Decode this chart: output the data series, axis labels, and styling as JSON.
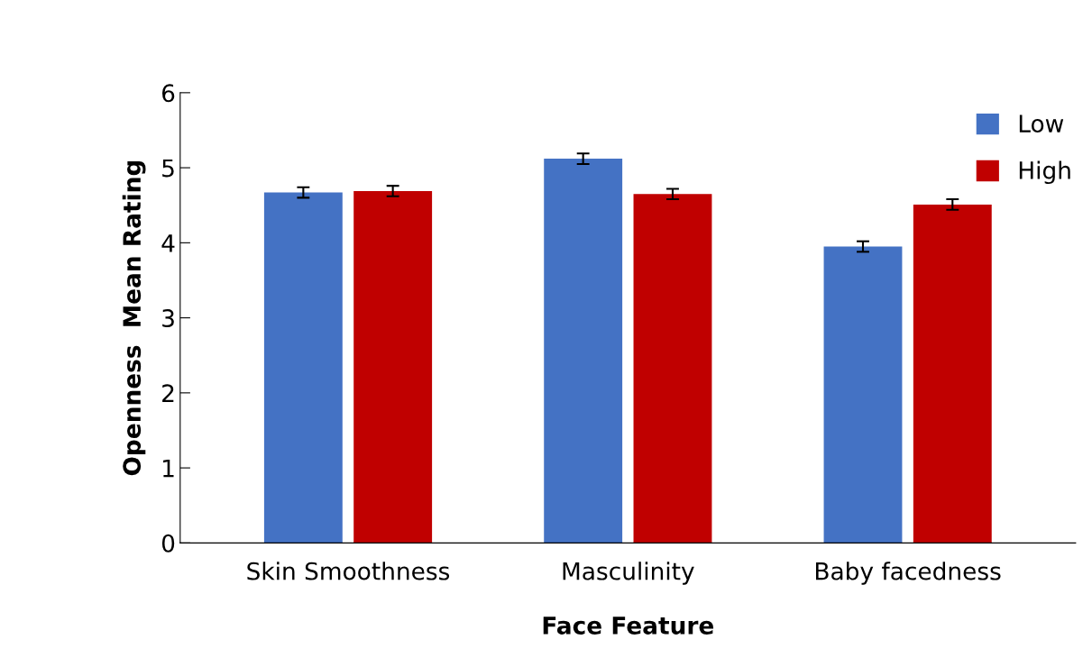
{
  "chart_data": {
    "type": "bar",
    "xlabel": "Face Feature",
    "ylabel": "Openness  Mean Rating",
    "categories": [
      "Skin Smoothness",
      "Masculinity",
      "Baby facedness"
    ],
    "series": [
      {
        "name": "Low",
        "color": "#4472c4",
        "values": [
          4.67,
          5.12,
          3.95
        ],
        "errors": [
          0.07,
          0.07,
          0.07
        ]
      },
      {
        "name": "High",
        "color": "#c00000",
        "values": [
          4.69,
          4.65,
          4.51
        ],
        "errors": [
          0.07,
          0.07,
          0.07
        ]
      }
    ],
    "ylim": [
      0,
      6
    ],
    "yticks": [
      0,
      1,
      2,
      3,
      4,
      5,
      6
    ],
    "grid": false,
    "legend": "top right"
  }
}
